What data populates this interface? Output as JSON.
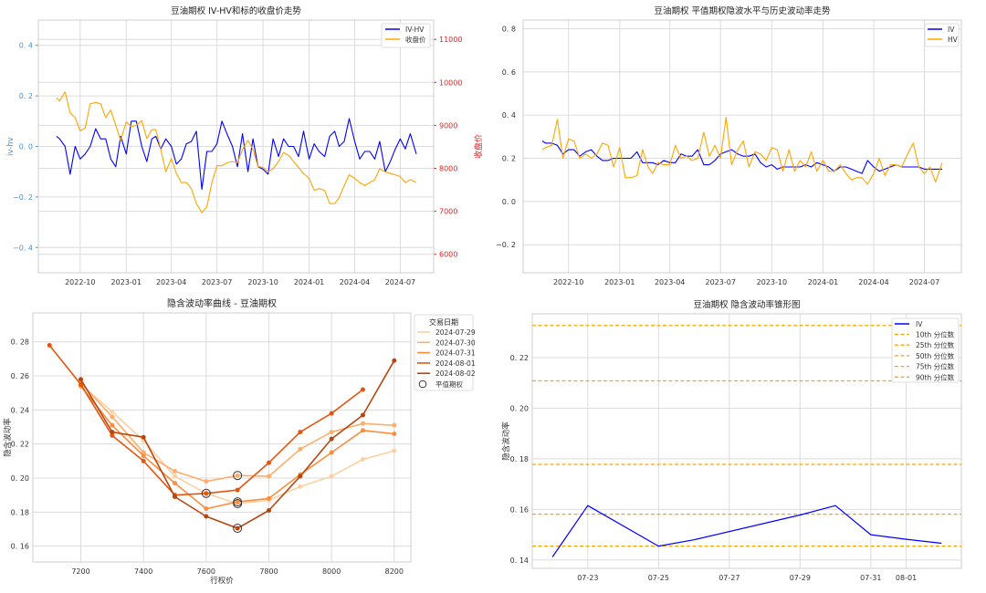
{
  "chart_data": [
    {
      "type": "line",
      "title": "豆油期权 IV-HV和标的收盘价走势",
      "ylabel": "iv-hv",
      "y2label": "收盘价",
      "ylim": [
        -0.5,
        0.5
      ],
      "y2lim": [
        5570,
        11450
      ],
      "yticks": [
        -0.4,
        -0.2,
        0.0,
        0.2,
        0.4
      ],
      "y2ticks": [
        6000,
        7000,
        8000,
        9000,
        10000,
        11000
      ],
      "xticks": [
        "2022-10",
        "2023-01",
        "2023-04",
        "2023-07",
        "2023-10",
        "2024-01",
        "2024-04",
        "2024-07"
      ],
      "grid": true,
      "legend": "top-right",
      "colors": {
        "iv_hv": "#0000ff",
        "close": "#ffa500",
        "left_axis": "#4a90c8",
        "right_axis": "#d62728"
      },
      "x": [
        "2022-08-15",
        "2022-08-21",
        "2022-09-01",
        "2022-09-11",
        "2022-09-21",
        "2022-10-01",
        "2022-10-11",
        "2022-10-21",
        "2022-11-01",
        "2022-11-11",
        "2022-11-21",
        "2022-12-01",
        "2022-12-11",
        "2022-12-21",
        "2023-01-01",
        "2023-01-11",
        "2023-01-21",
        "2023-02-01",
        "2023-02-11",
        "2023-02-21",
        "2023-03-01",
        "2023-03-11",
        "2023-03-21",
        "2023-04-01",
        "2023-04-11",
        "2023-04-21",
        "2023-05-01",
        "2023-05-11",
        "2023-05-21",
        "2023-06-01",
        "2023-06-11",
        "2023-06-21",
        "2023-07-01",
        "2023-07-11",
        "2023-07-21",
        "2023-08-01",
        "2023-08-11",
        "2023-08-21",
        "2023-09-01",
        "2023-09-11",
        "2023-09-21",
        "2023-10-01",
        "2023-10-11",
        "2023-10-21",
        "2023-11-01",
        "2023-11-11",
        "2023-11-21",
        "2023-12-01",
        "2023-12-11",
        "2023-12-21",
        "2024-01-01",
        "2024-01-11",
        "2024-01-21",
        "2024-02-01",
        "2024-02-11",
        "2024-02-21",
        "2024-03-01",
        "2024-03-11",
        "2024-03-21",
        "2024-04-01",
        "2024-04-11",
        "2024-04-21",
        "2024-05-01",
        "2024-05-11",
        "2024-05-21",
        "2024-06-01",
        "2024-06-11",
        "2024-06-21",
        "2024-07-01",
        "2024-07-11",
        "2024-07-21",
        "2024-08-02"
      ],
      "series": [
        {
          "name": "IV-HV",
          "axis": "left",
          "values": [
            0.04,
            0.03,
            0.0,
            -0.11,
            0.0,
            -0.05,
            -0.03,
            0.0,
            0.07,
            0.03,
            0.03,
            -0.05,
            -0.08,
            0.04,
            -0.03,
            0.1,
            0.1,
            0.0,
            -0.06,
            0.03,
            0.04,
            -0.01,
            0.03,
            0.0,
            -0.07,
            -0.05,
            0.01,
            0.02,
            0.06,
            -0.17,
            -0.02,
            -0.02,
            0.01,
            0.1,
            0.05,
            0.0,
            -0.08,
            0.05,
            -0.1,
            0.03,
            -0.08,
            -0.09,
            -0.11,
            0.03,
            -0.04,
            0.03,
            0.0,
            0.0,
            -0.04,
            0.06,
            -0.05,
            0.01,
            -0.02,
            -0.04,
            0.04,
            0.06,
            0.0,
            0.02,
            0.11,
            0.02,
            -0.05,
            -0.02,
            -0.02,
            -0.05,
            0.02,
            -0.1,
            -0.06,
            -0.01,
            0.03,
            -0.01,
            0.05,
            -0.03
          ]
        },
        {
          "name": "收盘价",
          "axis": "right",
          "values": [
            9640,
            9570,
            9780,
            9290,
            9180,
            8870,
            8940,
            9500,
            9535,
            9500,
            9180,
            9360,
            9000,
            8650,
            9080,
            8970,
            9000,
            9110,
            8690,
            8900,
            8900,
            8440,
            7920,
            8230,
            7880,
            7670,
            7670,
            7530,
            7180,
            6970,
            7110,
            7670,
            8060,
            8060,
            8130,
            8160,
            8130,
            8440,
            8650,
            8440,
            8040,
            8020,
            7920,
            7990,
            8160,
            8370,
            8300,
            8160,
            8020,
            7880,
            7770,
            7490,
            7530,
            7490,
            7180,
            7180,
            7320,
            7600,
            7850,
            7770,
            7670,
            7600,
            7670,
            7740,
            7990,
            7920,
            7880,
            7850,
            7810,
            7670,
            7740,
            7670
          ]
        }
      ]
    },
    {
      "type": "line",
      "title": "豆油期权 平值期权隐波水平与历史波动率走势",
      "ylim": [
        -0.33,
        0.84
      ],
      "yticks": [
        -0.2,
        0.0,
        0.2,
        0.4,
        0.6,
        0.8
      ],
      "xticks": [
        "2022-10",
        "2023-01",
        "2023-04",
        "2023-07",
        "2023-10",
        "2024-01",
        "2024-04",
        "2024-07"
      ],
      "grid": true,
      "legend": "top-right",
      "x": [
        "2022-08-15",
        "2022-08-21",
        "2022-09-01",
        "2022-09-11",
        "2022-09-21",
        "2022-10-01",
        "2022-10-11",
        "2022-10-21",
        "2022-11-01",
        "2022-11-11",
        "2022-11-21",
        "2022-12-01",
        "2022-12-11",
        "2022-12-21",
        "2023-01-01",
        "2023-01-11",
        "2023-01-21",
        "2023-02-01",
        "2023-02-11",
        "2023-02-21",
        "2023-03-01",
        "2023-03-11",
        "2023-03-21",
        "2023-04-01",
        "2023-04-11",
        "2023-04-21",
        "2023-05-01",
        "2023-05-11",
        "2023-05-21",
        "2023-06-01",
        "2023-06-11",
        "2023-06-21",
        "2023-07-01",
        "2023-07-11",
        "2023-07-21",
        "2023-08-01",
        "2023-08-11",
        "2023-08-21",
        "2023-09-01",
        "2023-09-11",
        "2023-09-21",
        "2023-10-01",
        "2023-10-11",
        "2023-10-21",
        "2023-11-01",
        "2023-11-11",
        "2023-11-21",
        "2023-12-01",
        "2023-12-11",
        "2023-12-21",
        "2024-01-01",
        "2024-01-11",
        "2024-01-21",
        "2024-02-01",
        "2024-02-11",
        "2024-02-21",
        "2024-03-01",
        "2024-03-11",
        "2024-03-21",
        "2024-04-01",
        "2024-04-11",
        "2024-04-21",
        "2024-05-01",
        "2024-05-11",
        "2024-05-21",
        "2024-06-01",
        "2024-06-11",
        "2024-06-21",
        "2024-07-01",
        "2024-07-11",
        "2024-07-21",
        "2024-08-02"
      ],
      "series": [
        {
          "name": "IV",
          "color": "#0000ff",
          "values": [
            0.28,
            0.27,
            0.27,
            0.26,
            0.22,
            0.24,
            0.24,
            0.21,
            0.23,
            0.24,
            0.21,
            0.19,
            0.19,
            0.2,
            0.2,
            0.2,
            0.2,
            0.23,
            0.18,
            0.18,
            0.18,
            0.17,
            0.19,
            0.18,
            0.18,
            0.22,
            0.21,
            0.21,
            0.24,
            0.17,
            0.17,
            0.19,
            0.22,
            0.23,
            0.24,
            0.22,
            0.21,
            0.21,
            0.22,
            0.18,
            0.16,
            0.17,
            0.15,
            0.16,
            0.16,
            0.16,
            0.16,
            0.17,
            0.16,
            0.18,
            0.17,
            0.16,
            0.14,
            0.16,
            0.16,
            0.15,
            0.14,
            0.13,
            0.19,
            0.16,
            0.14,
            0.15,
            0.16,
            0.17,
            0.16,
            0.16,
            0.16,
            0.16,
            0.15,
            0.15,
            0.15,
            0.15
          ]
        },
        {
          "name": "HV",
          "color": "#ffa500",
          "values": [
            0.24,
            0.25,
            0.26,
            0.38,
            0.2,
            0.29,
            0.28,
            0.2,
            0.22,
            0.2,
            0.22,
            0.27,
            0.26,
            0.16,
            0.25,
            0.11,
            0.11,
            0.12,
            0.24,
            0.16,
            0.13,
            0.18,
            0.17,
            0.17,
            0.26,
            0.2,
            0.21,
            0.19,
            0.2,
            0.32,
            0.21,
            0.26,
            0.2,
            0.39,
            0.17,
            0.24,
            0.28,
            0.16,
            0.23,
            0.22,
            0.19,
            0.25,
            0.24,
            0.14,
            0.24,
            0.14,
            0.19,
            0.16,
            0.23,
            0.14,
            0.19,
            0.14,
            0.14,
            0.17,
            0.13,
            0.1,
            0.11,
            0.11,
            0.08,
            0.13,
            0.2,
            0.12,
            0.17,
            0.17,
            0.16,
            0.22,
            0.27,
            0.16,
            0.13,
            0.16,
            0.09,
            0.18
          ]
        }
      ]
    },
    {
      "type": "line",
      "title": "隐含波动率曲线 - 豆油期权",
      "xlabel": "行权价",
      "ylabel": "隐含波动率",
      "xlim": [
        7047,
        8253
      ],
      "ylim": [
        0.1507,
        0.297
      ],
      "xticks": [
        7200,
        7400,
        7600,
        7800,
        8000,
        8200
      ],
      "yticks": [
        0.16,
        0.18,
        0.2,
        0.22,
        0.24,
        0.26,
        0.28
      ],
      "grid": true,
      "legend": "outside-right",
      "legend_title": "交易日期",
      "atm_label": "平值期权",
      "series": [
        {
          "name": "2024-07-29",
          "color": "#fdd0a2",
          "x": [
            7200,
            7300,
            7400,
            7500,
            7600,
            7700,
            7800,
            7900,
            8000,
            8100,
            8200
          ],
          "values": [
            0.255,
            0.239,
            0.222,
            0.201,
            0.191,
            0.185,
            0.187,
            0.195,
            0.201,
            0.211,
            0.216
          ],
          "atm": [
            7700,
            0.185
          ]
        },
        {
          "name": "2024-07-30",
          "color": "#fdae6b",
          "x": [
            7200,
            7300,
            7400,
            7500,
            7600,
            7700,
            7800,
            7900,
            8000,
            8100,
            8200
          ],
          "values": [
            0.256,
            0.236,
            0.215,
            0.204,
            0.198,
            0.2015,
            0.201,
            0.217,
            0.227,
            0.232,
            0.231
          ],
          "atm": [
            7700,
            0.2015
          ]
        },
        {
          "name": "2024-07-31",
          "color": "#fd8d3c",
          "x": [
            7200,
            7300,
            7400,
            7500,
            7600,
            7700,
            7800,
            7900,
            8000,
            8100,
            8200
          ],
          "values": [
            0.254,
            0.231,
            0.213,
            0.197,
            0.182,
            0.186,
            0.188,
            0.202,
            0.215,
            0.228,
            0.226
          ],
          "atm": [
            7700,
            0.186
          ]
        },
        {
          "name": "2024-08-01",
          "color": "#e6550d",
          "x": [
            7100,
            7200,
            7300,
            7400,
            7500,
            7600,
            7700,
            7800,
            7900,
            8000,
            8100
          ],
          "values": [
            0.278,
            0.255,
            0.225,
            0.21,
            0.19,
            0.191,
            0.193,
            0.209,
            0.227,
            0.238,
            0.252
          ],
          "atm": [
            7600,
            0.191
          ]
        },
        {
          "name": "2024-08-02",
          "color": "#b8460f",
          "x": [
            7200,
            7300,
            7400,
            7500,
            7600,
            7700,
            7800,
            7900,
            8000,
            8100,
            8200
          ],
          "values": [
            0.258,
            0.227,
            0.224,
            0.189,
            0.1775,
            0.1705,
            0.181,
            0.201,
            0.223,
            0.237,
            0.269
          ],
          "atm": [
            7700,
            0.1705
          ]
        }
      ]
    },
    {
      "type": "line",
      "title": "豆油期权 隐含波动率锥形图",
      "ylabel": "隐含波动率",
      "ylim": [
        0.1367,
        0.2373
      ],
      "yticks": [
        0.14,
        0.16,
        0.18,
        0.2,
        0.22
      ],
      "xticks": [
        "07-23",
        "07-25",
        "07-27",
        "07-29",
        "07-31",
        "08-01"
      ],
      "grid": true,
      "legend": "top-right",
      "series": [
        {
          "name": "IV",
          "color": "#0000ff",
          "x": [
            "2024-07-22",
            "2024-07-23",
            "2024-07-25",
            "2024-07-26",
            "2024-07-29",
            "2024-07-30",
            "2024-07-31",
            "2024-08-01",
            "2024-08-02"
          ],
          "values": [
            0.1412,
            0.1615,
            0.1455,
            0.148,
            0.1578,
            0.1615,
            0.15,
            0.1482,
            0.1466
          ]
        }
      ],
      "quantiles": [
        {
          "name": "10th 分位数",
          "value": 0.1455,
          "color": "#ffa500"
        },
        {
          "name": "25th 分位数",
          "value": 0.1581,
          "color": "#ffa500"
        },
        {
          "name": "50th 分位数",
          "value": 0.1778,
          "color": "#ffa500"
        },
        {
          "name": "75th 分位数",
          "value": 0.2108,
          "color": "#ffa500"
        },
        {
          "name": "90th 分位数",
          "value": 0.2327,
          "color": "#ffa500"
        }
      ]
    }
  ]
}
